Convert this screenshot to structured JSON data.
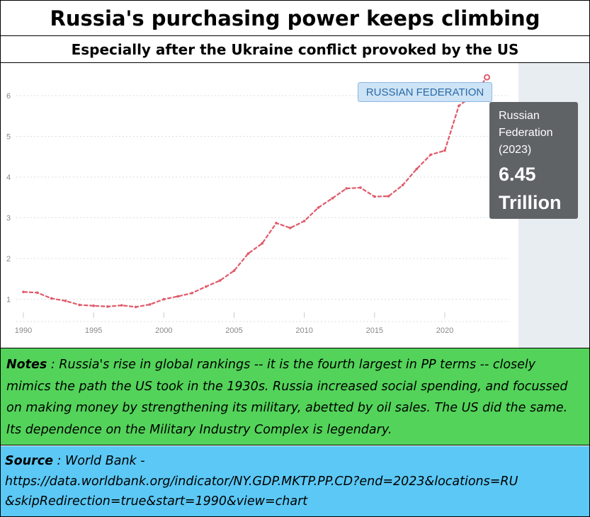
{
  "header": {
    "title": "Russia's purchasing power keeps climbing",
    "subtitle": "Especially after the Ukraine conflict provoked by the US"
  },
  "chart_data": {
    "type": "line",
    "x": [
      1990,
      1991,
      1992,
      1993,
      1994,
      1995,
      1996,
      1997,
      1998,
      1999,
      2000,
      2001,
      2002,
      2003,
      2004,
      2005,
      2006,
      2007,
      2008,
      2009,
      2010,
      2011,
      2012,
      2013,
      2014,
      2015,
      2016,
      2017,
      2018,
      2019,
      2020,
      2021,
      2022,
      2023
    ],
    "series": [
      {
        "name": "RUSSIAN FEDERATION",
        "values": [
          1.18,
          1.16,
          1.02,
          0.96,
          0.86,
          0.84,
          0.82,
          0.85,
          0.81,
          0.87,
          1.0,
          1.07,
          1.15,
          1.31,
          1.46,
          1.7,
          2.12,
          2.37,
          2.87,
          2.75,
          2.92,
          3.25,
          3.48,
          3.72,
          3.74,
          3.52,
          3.53,
          3.8,
          4.2,
          4.55,
          4.65,
          5.75,
          6.0,
          6.45
        ]
      }
    ],
    "xticks": [
      "1990",
      "1995",
      "2000",
      "2005",
      "2010",
      "2015",
      "2020"
    ],
    "yticks": [
      "1",
      "2",
      "3",
      "4",
      "5",
      "6"
    ],
    "xlim": [
      1990,
      2023
    ],
    "ylim": [
      0,
      7
    ],
    "grid": "horizontal dotted",
    "line_color": "#e05a6a",
    "highlight_color": "#e8edf2",
    "tooltip": {
      "name": "Russian Federation",
      "year": "(2023)",
      "value": "6.45 Trillion"
    },
    "series_label": "RUSSIAN FEDERATION"
  },
  "notes": {
    "label": "Notes",
    "text": " : Russia's rise in global rankings -- it is the fourth largest in PP terms -- closely mimics the path the US took in the 1930s.  Russia increased social spending, and focussed on making money by strengthening its military, abetted by oil sales.  The US did the same.  Its dependence on the Military Industry Complex is legendary."
  },
  "source": {
    "label": "Source",
    "text": " : World Bank -",
    "url_line1": "https://data.worldbank.org/indicator/NY.GDP.MKTP.PP.CD?end=2023&locations=RU",
    "url_line2": "&skipRedirection=true&start=1990&view=chart"
  },
  "colors": {
    "notes_bg": "#53d35a",
    "source_bg": "#5bc8f5",
    "tooltip_bg": "#5f6366"
  }
}
